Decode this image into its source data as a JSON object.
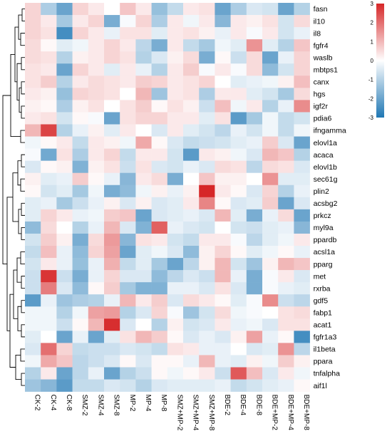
{
  "chart_data": {
    "type": "heatmap",
    "title": "",
    "xlabel": "",
    "ylabel": "",
    "columns": [
      "CK-2",
      "CK-4",
      "CK-8",
      "SMZ-2",
      "SMZ-4",
      "SMZ-8",
      "MP-2",
      "MP-4",
      "MP-8",
      "SMZ+MP-2",
      "SMZ+MP-4",
      "SMZ+MP-8",
      "BDE-2",
      "BDE-4",
      "BDE-8",
      "BDE+MP-2",
      "BDE+MP-4",
      "BDE+MP-8"
    ],
    "rows": [
      "fasn",
      "il10",
      "il8",
      "fgfr4",
      "waslb",
      "mbtps1",
      "canx",
      "hgs",
      "igf2r",
      "pdia6",
      "ifngamma",
      "elovl1a",
      "acaca",
      "elovl1b",
      "sec61g",
      "plin2",
      "acsbg2",
      "prkcz",
      "myl9a",
      "ppardb",
      "acsl1a",
      "pparg",
      "met",
      "rxrba",
      "gdf5",
      "fabp1",
      "acat1",
      "fgfr1a3",
      "il1beta",
      "ppara",
      "tnfalpha",
      "aif1l"
    ],
    "values": [
      [
        0.6,
        -1.1,
        -2.0,
        0.6,
        0.3,
        0.0,
        0.8,
        0.3,
        -1.4,
        -0.8,
        0.3,
        0.4,
        -2.0,
        -1.1,
        -0.5,
        -0.6,
        -2.0,
        -1.0
      ],
      [
        0.6,
        0.3,
        -1.2,
        0.3,
        0.6,
        -1.8,
        -0.1,
        0.6,
        -1.1,
        0.3,
        -0.2,
        0.3,
        -1.6,
        0.3,
        0.2,
        0.4,
        -0.6,
        0.5
      ],
      [
        0.6,
        0.4,
        -2.5,
        0.6,
        0.3,
        -0.3,
        0.4,
        0.4,
        -0.4,
        0.3,
        0.4,
        0.2,
        -0.3,
        0.3,
        -0.1,
        0.3,
        -0.6,
        -0.3
      ],
      [
        0.5,
        0.1,
        -0.4,
        -0.2,
        0.3,
        0.6,
        0.3,
        -0.9,
        -1.8,
        0.3,
        -0.8,
        -1.2,
        -0.2,
        -0.4,
        1.5,
        -0.4,
        -1.0,
        0.8
      ],
      [
        0.5,
        0.4,
        -1.0,
        0.2,
        0.3,
        0.6,
        0.4,
        -1.0,
        -0.5,
        0.2,
        0.5,
        -1.8,
        0.1,
        -0.7,
        0.5,
        -2.0,
        -0.3,
        0.6
      ],
      [
        0.4,
        0.3,
        -2.0,
        0.6,
        0.3,
        -0.4,
        0.3,
        -0.3,
        -1.0,
        0.3,
        0.7,
        -0.1,
        0.3,
        -0.1,
        0.5,
        -1.5,
        -0.6,
        0.6
      ],
      [
        0.4,
        0.7,
        -1.0,
        0.3,
        0.5,
        0.4,
        0.3,
        0.7,
        0.6,
        0.3,
        0.4,
        0.6,
        0.0,
        -0.4,
        -0.3,
        -0.2,
        0.2,
        0.9
      ],
      [
        0.3,
        0.2,
        -1.4,
        0.6,
        0.5,
        0.4,
        0.0,
        1.0,
        -1.3,
        0.3,
        0.4,
        -1.1,
        0.3,
        0.3,
        -0.4,
        -0.6,
        -1.2,
        0.5
      ],
      [
        0.2,
        0.1,
        -1.1,
        0.2,
        0.4,
        0.0,
        0.4,
        0.7,
        0.1,
        0.4,
        0.2,
        -0.7,
        0.9,
        -0.2,
        0.3,
        -1.0,
        -0.3,
        1.6
      ],
      [
        0.3,
        0.4,
        -0.6,
        0.1,
        -0.1,
        -2.0,
        0.4,
        0.6,
        0.6,
        0.3,
        0.3,
        -0.4,
        0.4,
        -2.2,
        -1.2,
        -0.2,
        -0.8,
        -0.6
      ],
      [
        1.0,
        2.6,
        -1.0,
        -0.3,
        0.2,
        -0.4,
        0.3,
        0.0,
        -0.5,
        0.3,
        -0.4,
        -0.6,
        -0.9,
        -0.3,
        -0.6,
        -0.2,
        -0.8,
        -0.2
      ],
      [
        -0.2,
        0.1,
        0.3,
        -0.8,
        0.3,
        0.2,
        -0.2,
        1.2,
        0.1,
        -0.5,
        -0.8,
        -0.7,
        -0.6,
        -0.4,
        -0.3,
        0.7,
        -0.5,
        -2.0
      ],
      [
        -0.1,
        -1.9,
        0.4,
        -1.1,
        0.3,
        0.6,
        -0.8,
        0.3,
        0.3,
        -0.6,
        -2.2,
        0.3,
        0.2,
        -0.2,
        -0.5,
        1.0,
        0.8,
        -1.0
      ],
      [
        -0.5,
        0.1,
        0.2,
        -1.7,
        0.2,
        0.4,
        -0.7,
        0.4,
        -0.5,
        -0.6,
        -0.3,
        -0.5,
        0.5,
        0.4,
        -0.9,
        0.5,
        0.4,
        -0.5
      ],
      [
        0.2,
        -0.4,
        -0.3,
        0.7,
        0.1,
        -0.3,
        -1.6,
        0.3,
        0.5,
        -1.8,
        0.0,
        0.8,
        0.2,
        0.2,
        0.0,
        1.5,
        -0.4,
        -0.4
      ],
      [
        0.1,
        -0.6,
        -0.4,
        -1.2,
        -0.2,
        -1.8,
        -1.5,
        -0.2,
        0.2,
        -0.3,
        0.2,
        3.0,
        0.3,
        0.1,
        -0.5,
        0.6,
        -1.0,
        -0.3
      ],
      [
        -0.4,
        -0.3,
        -1.2,
        -0.7,
        -0.3,
        0.2,
        -0.5,
        0.2,
        -0.5,
        -0.4,
        0.3,
        1.7,
        0.1,
        -0.5,
        -0.4,
        0.7,
        -2.0,
        -0.5
      ],
      [
        -0.4,
        0.6,
        0.3,
        -0.3,
        -0.2,
        0.7,
        0.8,
        -2.0,
        -0.5,
        -0.4,
        -0.3,
        -0.5,
        1.0,
        -0.4,
        -1.8,
        -0.3,
        0.5,
        -2.0
      ],
      [
        -1.5,
        0.5,
        0.0,
        -1.0,
        -0.3,
        1.0,
        -0.5,
        -1.7,
        2.2,
        -0.3,
        -0.5,
        -0.6,
        0.0,
        -0.6,
        -0.7,
        -0.4,
        -0.3,
        -1.6
      ],
      [
        -0.6,
        0.7,
        0.2,
        -1.8,
        0.5,
        1.4,
        -1.6,
        0.4,
        0.3,
        -0.6,
        -0.8,
        0.3,
        0.3,
        -0.1,
        -0.9,
        -0.4,
        -0.2,
        0.3
      ],
      [
        -0.8,
        0.9,
        -0.3,
        -1.5,
        0.6,
        1.3,
        -2.0,
        -0.4,
        -0.2,
        -0.5,
        -1.5,
        0.2,
        0.6,
        0.1,
        -0.4,
        -0.2,
        0.1,
        -0.3
      ],
      [
        -0.6,
        0.3,
        -0.3,
        -1.4,
        -0.3,
        1.1,
        -0.8,
        -0.4,
        -1.2,
        -2.0,
        -0.9,
        0.2,
        1.0,
        -0.6,
        -1.3,
        0.2,
        1.0,
        0.8
      ],
      [
        -0.7,
        2.8,
        -0.7,
        -1.8,
        -0.3,
        0.6,
        -0.5,
        -0.5,
        -1.5,
        -0.9,
        -0.5,
        -0.7,
        1.0,
        -0.3,
        -1.8,
        -0.1,
        0.3,
        -0.5
      ],
      [
        -0.7,
        1.8,
        -0.5,
        -1.5,
        0.1,
        0.7,
        -1.2,
        -1.7,
        -1.7,
        -0.3,
        -0.3,
        -0.5,
        0.4,
        -0.5,
        -1.8,
        -0.1,
        -0.3,
        -0.4
      ],
      [
        -2.2,
        -0.3,
        -1.3,
        -1.1,
        -1.0,
        -0.3,
        1.0,
        0.3,
        0.7,
        -0.5,
        0.5,
        0.3,
        0.1,
        -0.4,
        -0.1,
        1.6,
        -0.7,
        -0.9
      ],
      [
        -0.2,
        -0.2,
        -1.0,
        -0.2,
        1.3,
        1.4,
        -1.0,
        -0.5,
        0.6,
        -0.1,
        -1.3,
        -0.6,
        0.5,
        -0.2,
        -0.1,
        0.0,
        0.4,
        0.5
      ],
      [
        -0.2,
        -0.2,
        -0.7,
        0.1,
        1.0,
        2.9,
        -0.5,
        0.0,
        -1.0,
        0.2,
        -0.6,
        -0.5,
        0.3,
        -0.3,
        -0.2,
        -0.5,
        0.4,
        0.4
      ],
      [
        -0.4,
        0.0,
        -2.0,
        -0.3,
        -2.0,
        -0.4,
        0.4,
        1.0,
        0.7,
        0.1,
        -0.5,
        -0.3,
        -0.5,
        0.2,
        1.3,
        -0.3,
        0.1,
        -2.5
      ],
      [
        -0.5,
        2.0,
        0.6,
        -0.8,
        -0.7,
        -0.7,
        -0.5,
        -0.6,
        -0.8,
        0.4,
        0.3,
        -0.3,
        -0.3,
        0.0,
        -0.5,
        -0.4,
        1.5,
        -0.9
      ],
      [
        -0.2,
        1.2,
        0.8,
        -0.9,
        -0.7,
        -0.5,
        0.1,
        -0.5,
        0.1,
        0.1,
        -0.3,
        1.0,
        -0.3,
        -0.4,
        0.2,
        -0.2,
        0.7,
        0.2
      ],
      [
        -1.0,
        0.3,
        -2.0,
        -0.9,
        -0.3,
        -2.0,
        -1.0,
        -0.7,
        0.1,
        -0.2,
        0.1,
        0.3,
        -0.7,
        2.3,
        0.9,
        -0.5,
        0.3,
        -0.2
      ],
      [
        -1.3,
        -1.6,
        -2.2,
        -0.8,
        -0.8,
        -0.5,
        -0.6,
        -1.0,
        -0.5,
        -0.4,
        -0.4,
        -0.4,
        -0.3,
        -0.8,
        -0.6,
        -0.4,
        -0.3,
        0.1
      ]
    ],
    "color_scale": {
      "ticks": [
        3,
        2,
        1,
        0,
        -1,
        -2,
        -3
      ],
      "range": [
        -3,
        3
      ],
      "colors": {
        "low": "#1f77b4",
        "mid": "#ffffff",
        "high": "#d62728"
      }
    },
    "row_dendrogram": true,
    "grid": false,
    "legend_position": "top-right"
  }
}
